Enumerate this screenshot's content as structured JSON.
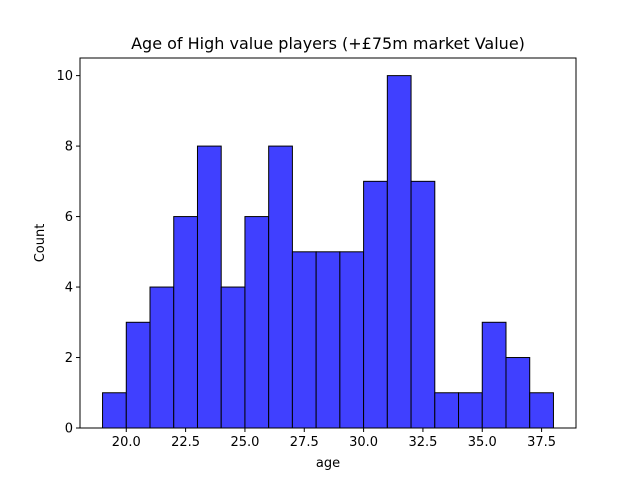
{
  "chart_data": {
    "type": "bar",
    "title": "Age of High value players (+£75m market Value)",
    "xlabel": "age",
    "ylabel": "Count",
    "bins": [
      {
        "start": 19.0,
        "end": 20.0,
        "count": 1
      },
      {
        "start": 20.0,
        "end": 21.0,
        "count": 3
      },
      {
        "start": 21.0,
        "end": 22.0,
        "count": 4
      },
      {
        "start": 22.0,
        "end": 23.0,
        "count": 6
      },
      {
        "start": 23.0,
        "end": 24.0,
        "count": 8
      },
      {
        "start": 24.0,
        "end": 25.0,
        "count": 4
      },
      {
        "start": 25.0,
        "end": 26.0,
        "count": 6
      },
      {
        "start": 26.0,
        "end": 27.0,
        "count": 8
      },
      {
        "start": 27.0,
        "end": 28.0,
        "count": 5
      },
      {
        "start": 28.0,
        "end": 29.0,
        "count": 5
      },
      {
        "start": 29.0,
        "end": 30.0,
        "count": 5
      },
      {
        "start": 30.0,
        "end": 31.0,
        "count": 7
      },
      {
        "start": 31.0,
        "end": 32.0,
        "count": 10
      },
      {
        "start": 32.0,
        "end": 33.0,
        "count": 7
      },
      {
        "start": 33.0,
        "end": 34.0,
        "count": 1
      },
      {
        "start": 34.0,
        "end": 35.0,
        "count": 1
      },
      {
        "start": 35.0,
        "end": 36.0,
        "count": 3
      },
      {
        "start": 36.0,
        "end": 37.0,
        "count": 2
      },
      {
        "start": 37.0,
        "end": 38.0,
        "count": 1
      }
    ],
    "xlim": [
      18.05,
      38.95
    ],
    "ylim": [
      0,
      10.5
    ],
    "xticks": [
      "20.0",
      "22.5",
      "25.0",
      "27.5",
      "30.0",
      "32.5",
      "35.0",
      "37.5"
    ],
    "yticks": [
      "0",
      "2",
      "4",
      "6",
      "8",
      "10"
    ],
    "bar_color": "#4040ff",
    "edge_color": "#000000",
    "grid": false,
    "legend": "none"
  }
}
